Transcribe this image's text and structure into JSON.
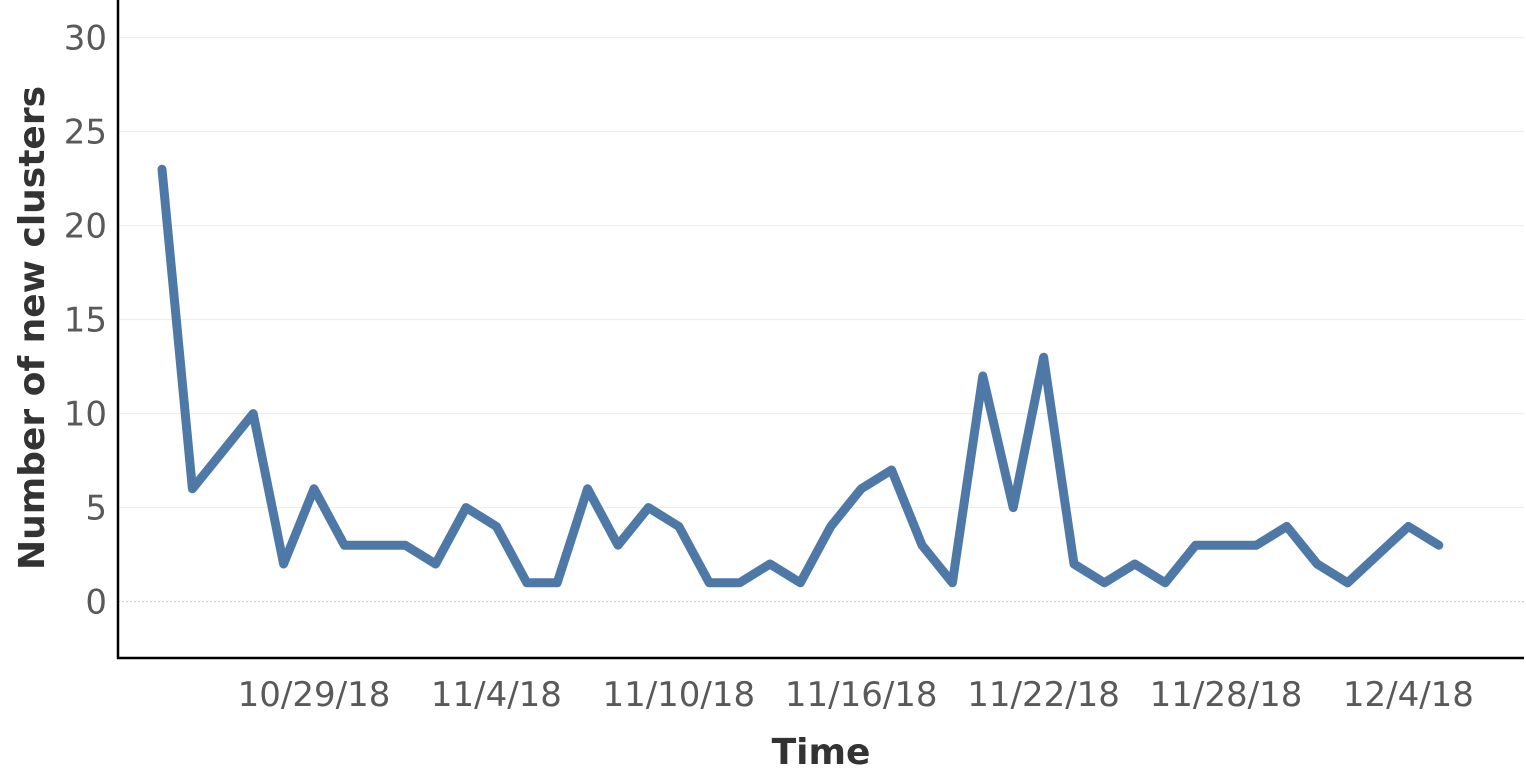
{
  "chart_data": {
    "type": "line",
    "title": "",
    "xlabel": "Time",
    "ylabel": "Number of new clusters",
    "ylim": [
      -3,
      32
    ],
    "yticks": [
      "0",
      "5",
      "10",
      "15",
      "20",
      "25",
      "30"
    ],
    "xticks": [
      "10/29/18",
      "11/4/18",
      "11/10/18",
      "11/16/18",
      "11/22/18",
      "11/28/18",
      "12/4/18"
    ],
    "grid": true,
    "colors": {
      "series": "#4e79a7"
    },
    "series": [
      {
        "x": [
          "10/24/18",
          "10/25/18",
          "10/26/18",
          "10/27/18",
          "10/28/18",
          "10/29/18",
          "10/30/18",
          "10/31/18",
          "11/1/18",
          "11/2/18",
          "11/3/18",
          "11/4/18",
          "11/5/18",
          "11/6/18",
          "11/7/18",
          "11/8/18",
          "11/9/18",
          "11/10/18",
          "11/11/18",
          "11/12/18",
          "11/13/18",
          "11/14/18",
          "11/15/18",
          "11/16/18",
          "11/17/18",
          "11/18/18",
          "11/19/18",
          "11/20/18",
          "11/21/18",
          "11/22/18",
          "11/23/18",
          "11/24/18",
          "11/25/18",
          "11/26/18",
          "11/27/18",
          "11/28/18",
          "11/29/18",
          "11/30/18",
          "12/1/18",
          "12/2/18",
          "12/3/18",
          "12/4/18",
          "12/5/18"
        ],
        "values": [
          23,
          6,
          8,
          10,
          2,
          6,
          3,
          3,
          3,
          2,
          5,
          4,
          1,
          1,
          6,
          3,
          5,
          4,
          1,
          1,
          2,
          1,
          4,
          6,
          7,
          3,
          1,
          12,
          5,
          13,
          2,
          1,
          2,
          1,
          3,
          3,
          3,
          4,
          2,
          1,
          2.5,
          4,
          3
        ]
      }
    ]
  }
}
